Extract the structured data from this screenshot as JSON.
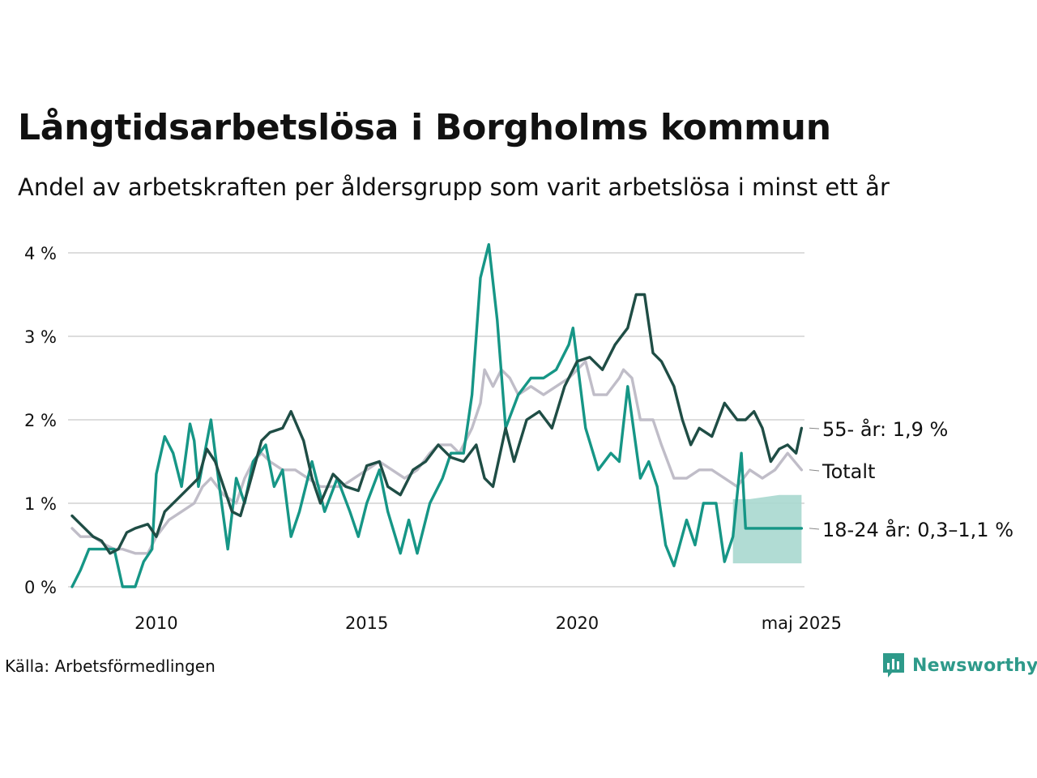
{
  "title": "Långtidsarbetslösa i Borgholms kommun",
  "subtitle": "Andel av arbetskraften per åldersgrupp som varit arbetslösa i minst ett år",
  "source": "Källa: Arbetsförmedlingen",
  "brand": "Newsworthy",
  "colors": {
    "age55": "#1f4d45",
    "total": "#c0bdc8",
    "age1824": "#169686",
    "band": "#a8d8cf",
    "grid": "#dddddd",
    "brand": "#2e9a8a"
  },
  "chart_data": {
    "type": "line",
    "x_unit": "year",
    "xlim": [
      2008.0,
      2025.4
    ],
    "ylim": [
      0,
      4.2
    ],
    "y_ticks": [
      0,
      1,
      2,
      3,
      4
    ],
    "y_tick_labels": [
      "0 %",
      "1 %",
      "2 %",
      "3 %",
      "4 %"
    ],
    "x_ticks": [
      2010,
      2015,
      2020,
      2025.33
    ],
    "x_tick_labels": [
      "2010",
      "2015",
      "2020",
      "maj 2025"
    ],
    "grid": true,
    "legend": "inline-right",
    "series": [
      {
        "name": "Totalt",
        "label": "Totalt",
        "color": "#c0bdc8",
        "points": [
          [
            2008.0,
            0.7
          ],
          [
            2008.2,
            0.6
          ],
          [
            2008.5,
            0.6
          ],
          [
            2008.8,
            0.5
          ],
          [
            2009.0,
            0.45
          ],
          [
            2009.2,
            0.45
          ],
          [
            2009.5,
            0.4
          ],
          [
            2009.8,
            0.4
          ],
          [
            2010.0,
            0.6
          ],
          [
            2010.3,
            0.8
          ],
          [
            2010.6,
            0.9
          ],
          [
            2010.9,
            1.0
          ],
          [
            2011.1,
            1.2
          ],
          [
            2011.3,
            1.3
          ],
          [
            2011.6,
            1.1
          ],
          [
            2011.9,
            1.0
          ],
          [
            2012.1,
            1.3
          ],
          [
            2012.3,
            1.5
          ],
          [
            2012.5,
            1.6
          ],
          [
            2012.7,
            1.5
          ],
          [
            2013.0,
            1.4
          ],
          [
            2013.3,
            1.4
          ],
          [
            2013.6,
            1.3
          ],
          [
            2013.9,
            1.2
          ],
          [
            2014.1,
            1.2
          ],
          [
            2014.4,
            1.2
          ],
          [
            2014.7,
            1.3
          ],
          [
            2015.0,
            1.4
          ],
          [
            2015.3,
            1.5
          ],
          [
            2015.6,
            1.4
          ],
          [
            2015.9,
            1.3
          ],
          [
            2016.2,
            1.4
          ],
          [
            2016.5,
            1.6
          ],
          [
            2016.7,
            1.7
          ],
          [
            2017.0,
            1.7
          ],
          [
            2017.2,
            1.6
          ],
          [
            2017.5,
            1.9
          ],
          [
            2017.7,
            2.2
          ],
          [
            2017.8,
            2.6
          ],
          [
            2018.0,
            2.4
          ],
          [
            2018.2,
            2.6
          ],
          [
            2018.4,
            2.5
          ],
          [
            2018.6,
            2.3
          ],
          [
            2018.9,
            2.4
          ],
          [
            2019.2,
            2.3
          ],
          [
            2019.5,
            2.4
          ],
          [
            2019.8,
            2.5
          ],
          [
            2020.0,
            2.6
          ],
          [
            2020.2,
            2.7
          ],
          [
            2020.4,
            2.3
          ],
          [
            2020.7,
            2.3
          ],
          [
            2021.0,
            2.5
          ],
          [
            2021.1,
            2.6
          ],
          [
            2021.3,
            2.5
          ],
          [
            2021.5,
            2.0
          ],
          [
            2021.8,
            2.0
          ],
          [
            2022.0,
            1.7
          ],
          [
            2022.3,
            1.3
          ],
          [
            2022.6,
            1.3
          ],
          [
            2022.9,
            1.4
          ],
          [
            2023.2,
            1.4
          ],
          [
            2023.5,
            1.3
          ],
          [
            2023.8,
            1.2
          ],
          [
            2024.1,
            1.4
          ],
          [
            2024.4,
            1.3
          ],
          [
            2024.7,
            1.4
          ],
          [
            2025.0,
            1.6
          ],
          [
            2025.33,
            1.4
          ]
        ]
      },
      {
        "name": "55- år",
        "label": "55- år: 1,9 %",
        "color": "#1f4d45",
        "points": [
          [
            2008.0,
            0.85
          ],
          [
            2008.2,
            0.75
          ],
          [
            2008.5,
            0.6
          ],
          [
            2008.7,
            0.55
          ],
          [
            2008.9,
            0.4
          ],
          [
            2009.1,
            0.45
          ],
          [
            2009.3,
            0.65
          ],
          [
            2009.5,
            0.7
          ],
          [
            2009.8,
            0.75
          ],
          [
            2010.0,
            0.6
          ],
          [
            2010.2,
            0.9
          ],
          [
            2010.5,
            1.05
          ],
          [
            2010.8,
            1.2
          ],
          [
            2011.0,
            1.3
          ],
          [
            2011.2,
            1.65
          ],
          [
            2011.4,
            1.5
          ],
          [
            2011.6,
            1.2
          ],
          [
            2011.8,
            0.9
          ],
          [
            2012.0,
            0.85
          ],
          [
            2012.2,
            1.2
          ],
          [
            2012.5,
            1.75
          ],
          [
            2012.7,
            1.85
          ],
          [
            2013.0,
            1.9
          ],
          [
            2013.2,
            2.1
          ],
          [
            2013.5,
            1.75
          ],
          [
            2013.7,
            1.3
          ],
          [
            2013.9,
            1.0
          ],
          [
            2014.2,
            1.35
          ],
          [
            2014.5,
            1.2
          ],
          [
            2014.8,
            1.15
          ],
          [
            2015.0,
            1.45
          ],
          [
            2015.3,
            1.5
          ],
          [
            2015.5,
            1.2
          ],
          [
            2015.8,
            1.1
          ],
          [
            2016.1,
            1.4
          ],
          [
            2016.4,
            1.5
          ],
          [
            2016.7,
            1.7
          ],
          [
            2017.0,
            1.55
          ],
          [
            2017.3,
            1.5
          ],
          [
            2017.6,
            1.7
          ],
          [
            2017.8,
            1.3
          ],
          [
            2018.0,
            1.2
          ],
          [
            2018.3,
            1.9
          ],
          [
            2018.5,
            1.5
          ],
          [
            2018.8,
            2.0
          ],
          [
            2019.1,
            2.1
          ],
          [
            2019.4,
            1.9
          ],
          [
            2019.7,
            2.4
          ],
          [
            2020.0,
            2.7
          ],
          [
            2020.3,
            2.75
          ],
          [
            2020.6,
            2.6
          ],
          [
            2020.9,
            2.9
          ],
          [
            2021.2,
            3.1
          ],
          [
            2021.4,
            3.5
          ],
          [
            2021.6,
            3.5
          ],
          [
            2021.8,
            2.8
          ],
          [
            2022.0,
            2.7
          ],
          [
            2022.3,
            2.4
          ],
          [
            2022.5,
            2.0
          ],
          [
            2022.7,
            1.7
          ],
          [
            2022.9,
            1.9
          ],
          [
            2023.2,
            1.8
          ],
          [
            2023.5,
            2.2
          ],
          [
            2023.8,
            2.0
          ],
          [
            2024.0,
            2.0
          ],
          [
            2024.2,
            2.1
          ],
          [
            2024.4,
            1.9
          ],
          [
            2024.6,
            1.5
          ],
          [
            2024.8,
            1.65
          ],
          [
            2025.0,
            1.7
          ],
          [
            2025.2,
            1.6
          ],
          [
            2025.33,
            1.9
          ]
        ]
      },
      {
        "name": "18-24 år",
        "label": "18-24 år: 0,3–1,1 %",
        "color": "#169686",
        "points": [
          [
            2008.0,
            0.0
          ],
          [
            2008.2,
            0.2
          ],
          [
            2008.4,
            0.45
          ],
          [
            2008.8,
            0.45
          ],
          [
            2009.0,
            0.45
          ],
          [
            2009.2,
            0.0
          ],
          [
            2009.5,
            0.0
          ],
          [
            2009.7,
            0.3
          ],
          [
            2009.9,
            0.45
          ],
          [
            2010.0,
            1.35
          ],
          [
            2010.2,
            1.8
          ],
          [
            2010.4,
            1.6
          ],
          [
            2010.6,
            1.2
          ],
          [
            2010.8,
            1.95
          ],
          [
            2010.9,
            1.75
          ],
          [
            2011.0,
            1.2
          ],
          [
            2011.3,
            2.0
          ],
          [
            2011.5,
            1.2
          ],
          [
            2011.7,
            0.45
          ],
          [
            2011.9,
            1.3
          ],
          [
            2012.1,
            1.0
          ],
          [
            2012.3,
            1.5
          ],
          [
            2012.6,
            1.7
          ],
          [
            2012.8,
            1.2
          ],
          [
            2013.0,
            1.4
          ],
          [
            2013.2,
            0.6
          ],
          [
            2013.4,
            0.9
          ],
          [
            2013.7,
            1.5
          ],
          [
            2014.0,
            0.9
          ],
          [
            2014.3,
            1.3
          ],
          [
            2014.6,
            0.9
          ],
          [
            2014.8,
            0.6
          ],
          [
            2015.0,
            1.0
          ],
          [
            2015.3,
            1.4
          ],
          [
            2015.5,
            0.9
          ],
          [
            2015.8,
            0.4
          ],
          [
            2016.0,
            0.8
          ],
          [
            2016.2,
            0.4
          ],
          [
            2016.5,
            1.0
          ],
          [
            2016.8,
            1.3
          ],
          [
            2017.0,
            1.6
          ],
          [
            2017.3,
            1.6
          ],
          [
            2017.5,
            2.3
          ],
          [
            2017.7,
            3.7
          ],
          [
            2017.9,
            4.1
          ],
          [
            2018.1,
            3.2
          ],
          [
            2018.3,
            1.9
          ],
          [
            2018.6,
            2.3
          ],
          [
            2018.9,
            2.5
          ],
          [
            2019.2,
            2.5
          ],
          [
            2019.5,
            2.6
          ],
          [
            2019.8,
            2.9
          ],
          [
            2019.9,
            3.1
          ],
          [
            2020.2,
            1.9
          ],
          [
            2020.5,
            1.4
          ],
          [
            2020.8,
            1.6
          ],
          [
            2021.0,
            1.5
          ],
          [
            2021.2,
            2.4
          ],
          [
            2021.5,
            1.3
          ],
          [
            2021.7,
            1.5
          ],
          [
            2021.9,
            1.2
          ],
          [
            2022.1,
            0.5
          ],
          [
            2022.3,
            0.25
          ],
          [
            2022.6,
            0.8
          ],
          [
            2022.8,
            0.5
          ],
          [
            2023.0,
            1.0
          ],
          [
            2023.3,
            1.0
          ],
          [
            2023.5,
            0.3
          ],
          [
            2023.7,
            0.6
          ],
          [
            2023.9,
            1.6
          ],
          [
            2024.0,
            0.7
          ],
          [
            2024.3,
            0.7
          ],
          [
            2024.6,
            0.7
          ],
          [
            2024.8,
            0.7
          ],
          [
            2025.0,
            0.7
          ],
          [
            2025.33,
            0.7
          ]
        ],
        "band": [
          [
            2023.7,
            0.28,
            1.05
          ],
          [
            2024.1,
            0.28,
            1.05
          ],
          [
            2024.8,
            0.28,
            1.1
          ],
          [
            2025.33,
            0.28,
            1.1
          ]
        ]
      }
    ]
  }
}
